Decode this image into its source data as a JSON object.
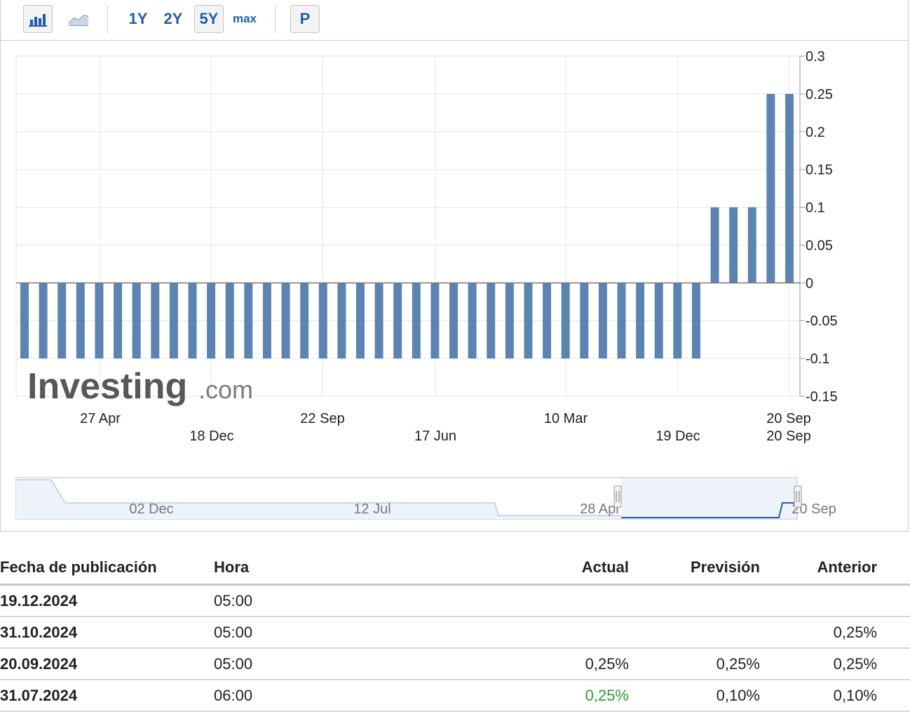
{
  "toolbar": {
    "icons": [
      "bar-chart-icon",
      "line-chart-icon"
    ],
    "ranges": [
      "1Y",
      "2Y",
      "5Y",
      "max"
    ],
    "active_range": "5Y",
    "p_label": "P"
  },
  "colors": {
    "bar": "#5c84b1",
    "grid": "#e6e6e6",
    "accent": "#1f5fa8",
    "positive": "#2f9a2f"
  },
  "watermark": "Investing.com",
  "chart_data": {
    "type": "bar",
    "ylim": [
      -0.15,
      0.3
    ],
    "y_ticks": [
      "0.3",
      "0.25",
      "0.2",
      "0.15",
      "0.1",
      "0.05",
      "0",
      "-0.05",
      "-0.1",
      "-0.15"
    ],
    "x_tick_labels_top": [
      "27 Apr",
      "22 Sep",
      "10 Mar",
      "20 Sep"
    ],
    "x_tick_labels_bottom": [
      "18 Dec",
      "17 Jun",
      "19 Dec",
      "20 Sep"
    ],
    "values": [
      -0.1,
      -0.1,
      -0.1,
      -0.1,
      -0.1,
      -0.1,
      -0.1,
      -0.1,
      -0.1,
      -0.1,
      -0.1,
      -0.1,
      -0.1,
      -0.1,
      -0.1,
      -0.1,
      -0.1,
      -0.1,
      -0.1,
      -0.1,
      -0.1,
      -0.1,
      -0.1,
      -0.1,
      -0.1,
      -0.1,
      -0.1,
      -0.1,
      -0.1,
      -0.1,
      -0.1,
      -0.1,
      -0.1,
      -0.1,
      -0.1,
      -0.1,
      -0.1,
      0.1,
      0.1,
      0.1,
      0.25,
      0.25
    ],
    "grid": true,
    "navigator_labels": [
      "02 Dec",
      "12 Jul",
      "28 Apr",
      "20 Sep"
    ]
  },
  "table": {
    "headers": [
      "Fecha de publicación",
      "Hora",
      "Actual",
      "Previsión",
      "Anterior"
    ],
    "rows": [
      {
        "date": "19.12.2024",
        "time": "05:00",
        "actual": "",
        "forecast": "",
        "previous": ""
      },
      {
        "date": "31.10.2024",
        "time": "05:00",
        "actual": "",
        "forecast": "",
        "previous": "0,25%"
      },
      {
        "date": "20.09.2024",
        "time": "05:00",
        "actual": "0,25%",
        "forecast": "0,25%",
        "previous": "0,25%"
      },
      {
        "date": "31.07.2024",
        "time": "06:00",
        "actual": "0,25%",
        "forecast": "0,10%",
        "previous": "0,10%"
      }
    ]
  }
}
